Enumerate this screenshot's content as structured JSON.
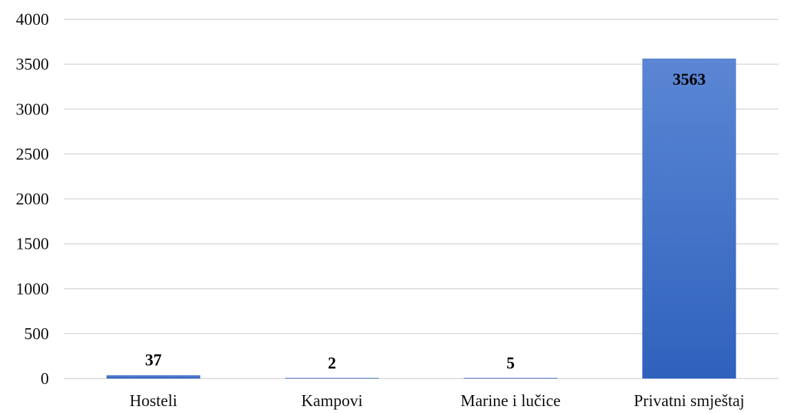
{
  "chart_data": {
    "type": "bar",
    "title": "",
    "xlabel": "",
    "ylabel": "",
    "categories": [
      "Hosteli",
      "Kampovi",
      "Marine i lučice",
      "Privatni smještaj"
    ],
    "values": [
      37,
      2,
      5,
      3563
    ],
    "data_labels": [
      "37",
      "2",
      "5",
      "3563"
    ],
    "ylim": [
      0,
      4000
    ],
    "yticks": [
      0,
      500,
      1000,
      1500,
      2000,
      2500,
      3000,
      3500,
      4000
    ],
    "ytick_labels": [
      "0",
      "500",
      "1000",
      "1500",
      "2000",
      "2500",
      "3000",
      "3500",
      "4000"
    ],
    "grid": true,
    "legend": "none",
    "colors": {
      "bar_top": "#5b86d4",
      "bar_bottom": "#2f62bd",
      "gridline": "#d9d9d9",
      "text": "#111111"
    }
  }
}
